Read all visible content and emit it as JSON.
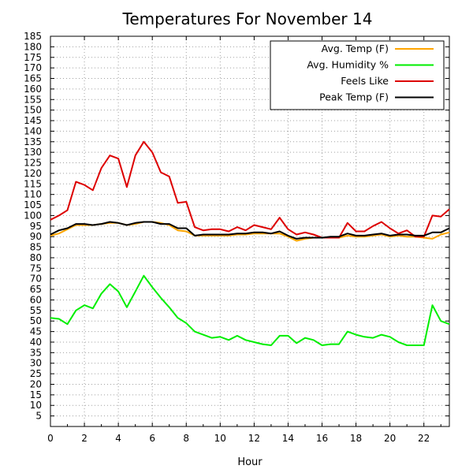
{
  "chart_data": {
    "type": "line",
    "title": "Temperatures For November 14",
    "xlabel": "Hour",
    "ylabel": "",
    "xlim": [
      0,
      23.5
    ],
    "ylim": [
      0,
      185
    ],
    "x_ticks": [
      0,
      2,
      4,
      6,
      8,
      10,
      12,
      14,
      16,
      18,
      20,
      22
    ],
    "y_ticks": [
      5,
      10,
      15,
      20,
      25,
      30,
      35,
      40,
      45,
      50,
      55,
      60,
      65,
      70,
      75,
      80,
      85,
      90,
      95,
      100,
      105,
      110,
      115,
      120,
      125,
      130,
      135,
      140,
      145,
      150,
      155,
      160,
      165,
      170,
      175,
      180,
      185
    ],
    "grid": true,
    "legend_position": "top-right",
    "x": [
      0,
      0.5,
      1,
      1.5,
      2,
      2.5,
      3,
      3.5,
      4,
      4.5,
      5,
      5.5,
      6,
      6.5,
      7,
      7.5,
      8,
      8.5,
      9,
      9.5,
      10,
      10.5,
      11,
      11.5,
      12,
      12.5,
      13,
      13.5,
      14,
      14.5,
      15,
      15.5,
      16,
      16.5,
      17,
      17.5,
      18,
      18.5,
      19,
      19.5,
      20,
      20.5,
      21,
      21.5,
      22,
      22.5,
      23,
      23.5
    ],
    "series": [
      {
        "name": "Avg. Temp (F)",
        "color": "#ffa500",
        "values": [
          90.5,
          91.5,
          93.5,
          95.5,
          95.5,
          95.5,
          96,
          96.5,
          96.5,
          95.5,
          96,
          97,
          97,
          96.5,
          95.5,
          93,
          92.5,
          90.5,
          90.5,
          90.5,
          90.5,
          90.5,
          91,
          91,
          91.5,
          91.5,
          91.5,
          91.5,
          90,
          88,
          89,
          89.5,
          89.5,
          89.5,
          89.5,
          90.5,
          90,
          90,
          90.5,
          91,
          90,
          90.5,
          90,
          90,
          89.5,
          89,
          91,
          92
        ]
      },
      {
        "name": "Avg. Humidity %",
        "color": "#00ee00",
        "values": [
          51.5,
          51,
          48.5,
          55,
          57.5,
          56,
          63,
          67.5,
          64,
          56.5,
          64,
          71.5,
          66,
          61,
          56.5,
          51.5,
          49,
          45,
          43.5,
          42,
          42.5,
          41,
          43,
          41,
          40,
          39,
          38.5,
          43,
          43,
          39.5,
          42,
          41,
          38.5,
          39,
          39,
          45,
          43.5,
          42.5,
          42,
          43.5,
          42.5,
          40,
          38.5,
          38.5,
          38.5,
          57.5,
          50,
          48.5
        ]
      },
      {
        "name": "Feels Like",
        "color": "#dd0000",
        "values": [
          98,
          100,
          102.5,
          116,
          114.5,
          112,
          122.5,
          128.5,
          127,
          113.5,
          128.5,
          135,
          130,
          120.5,
          118.5,
          106,
          106.5,
          94.5,
          93,
          93.5,
          93.5,
          92.5,
          94.5,
          93,
          95.5,
          94.5,
          93.5,
          99,
          93.5,
          91,
          92,
          91,
          89.5,
          89.5,
          89.5,
          96.5,
          92.5,
          92.5,
          95,
          97,
          94,
          91.5,
          93,
          90,
          90,
          100,
          99.5,
          103
        ]
      },
      {
        "name": "Peak Temp (F)",
        "color": "#000000",
        "values": [
          91,
          93,
          94,
          96,
          96,
          95.5,
          96,
          97,
          96.5,
          95.5,
          96.5,
          97,
          97,
          96,
          96,
          94,
          94,
          90.5,
          91,
          91,
          91,
          91,
          91.5,
          91.5,
          92,
          92,
          91.5,
          92.5,
          90.5,
          89,
          89.5,
          89.5,
          89.5,
          90,
          90,
          91.5,
          90.5,
          90.5,
          91,
          91.5,
          90.5,
          91,
          91,
          90.5,
          90.5,
          92,
          92,
          94
        ]
      }
    ]
  }
}
